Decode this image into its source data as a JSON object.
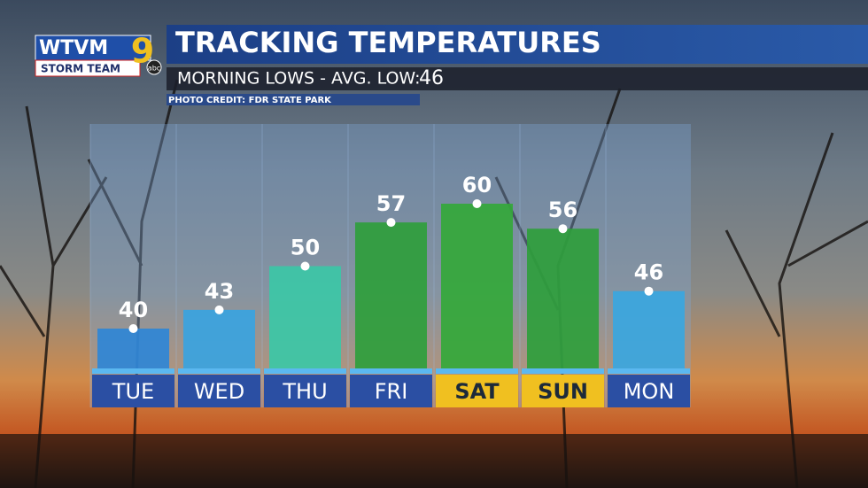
{
  "chart_data": {
    "type": "bar",
    "title": "TRACKING TEMPERATURES",
    "subtitle": "MORNING LOWS - AVG. LOW:",
    "avg_low": 46,
    "photo_credit": "PHOTO CREDIT: FDR STATE PARK",
    "logo": {
      "station": "WTVM",
      "team": "STORM TEAM",
      "channel": "9",
      "network": "abc"
    },
    "categories": [
      "TUE",
      "WED",
      "THU",
      "FRI",
      "SAT",
      "SUN",
      "MON"
    ],
    "values": [
      40,
      43,
      50,
      57,
      60,
      56,
      46
    ],
    "colors": [
      "#2f86d6",
      "#39a3e0",
      "#3cc7a6",
      "#2f9e3c",
      "#34a83a",
      "#2f9e3c",
      "#3aa6e0"
    ],
    "label_colors": [
      "#2b4fa3",
      "#2b4fa3",
      "#2b4fa3",
      "#2b4fa3",
      "#f0c020",
      "#f0c020",
      "#2b4fa3"
    ],
    "label_text_colors": [
      "#ffffff",
      "#ffffff",
      "#ffffff",
      "#ffffff",
      "#1d2a3a",
      "#1d2a3a",
      "#ffffff"
    ]
  }
}
